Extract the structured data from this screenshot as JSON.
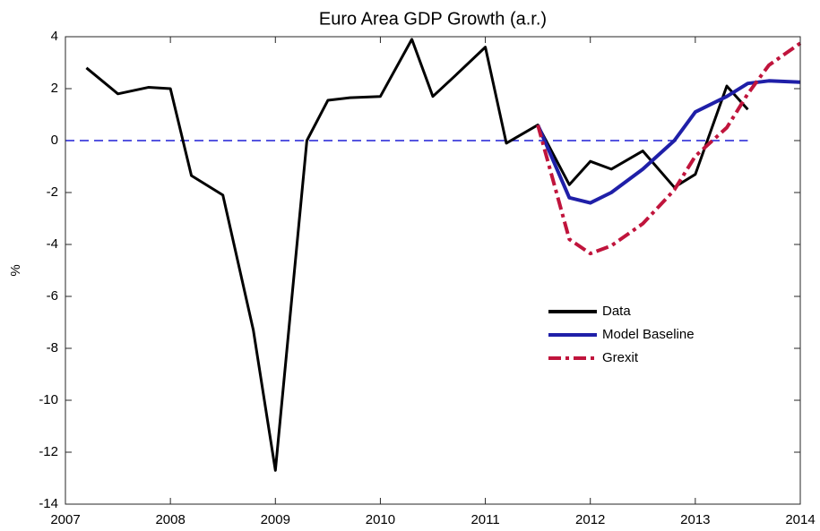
{
  "chart_data": {
    "type": "line",
    "title": "Euro Area GDP Growth (a.r.)",
    "ylabel": "%",
    "xlim": [
      2007,
      2014
    ],
    "xticks": [
      2007,
      2008,
      2009,
      2010,
      2011,
      2012,
      2013,
      2014
    ],
    "ylim": [
      -14,
      4
    ],
    "yticks": [
      -14,
      -12,
      -10,
      -8,
      -6,
      -4,
      -2,
      0,
      2,
      4
    ],
    "legend": "center right",
    "reference_line": {
      "y": 0,
      "x": [
        2007,
        2013.5
      ],
      "color": "#1f1fd6",
      "linestyle": "dashed"
    },
    "series": [
      {
        "name": "Data",
        "color": "#000000",
        "linestyle": "solid",
        "x": [
          2007.2,
          2007.5,
          2007.79,
          2008.0,
          2008.2,
          2008.5,
          2008.79,
          2009.0,
          2009.3,
          2009.5,
          2009.71,
          2010.0,
          2010.3,
          2010.5,
          2010.7,
          2011.0,
          2011.2,
          2011.5,
          2011.8,
          2012.0,
          2012.2,
          2012.5,
          2012.8,
          2013.0,
          2013.3,
          2013.5
        ],
        "values": [
          2.8,
          1.8,
          2.05,
          2.0,
          -1.35,
          -2.1,
          -7.3,
          -12.7,
          0.0,
          1.55,
          1.65,
          1.7,
          3.9,
          1.7,
          2.45,
          3.6,
          -0.1,
          0.6,
          -1.7,
          -0.8,
          -1.1,
          -0.4,
          -1.8,
          -1.3,
          2.1,
          1.2
        ]
      },
      {
        "name": "Model Baseline",
        "color": "#1f1fa8",
        "linestyle": "solid",
        "x": [
          2011.5,
          2011.8,
          2012.0,
          2012.2,
          2012.5,
          2012.8,
          2013.0,
          2013.3,
          2013.5,
          2013.7,
          2014.0
        ],
        "values": [
          0.6,
          -2.2,
          -2.4,
          -2.0,
          -1.1,
          0.0,
          1.1,
          1.7,
          2.2,
          2.3,
          2.25
        ]
      },
      {
        "name": "Grexit",
        "color": "#c0143c",
        "linestyle": "dashdot",
        "x": [
          2011.5,
          2011.8,
          2012.0,
          2012.2,
          2012.5,
          2012.8,
          2013.0,
          2013.3,
          2013.5,
          2013.7,
          2014.0
        ],
        "values": [
          0.6,
          -3.8,
          -4.35,
          -4.05,
          -3.2,
          -1.9,
          -0.6,
          0.5,
          1.8,
          2.9,
          3.75
        ]
      }
    ]
  }
}
